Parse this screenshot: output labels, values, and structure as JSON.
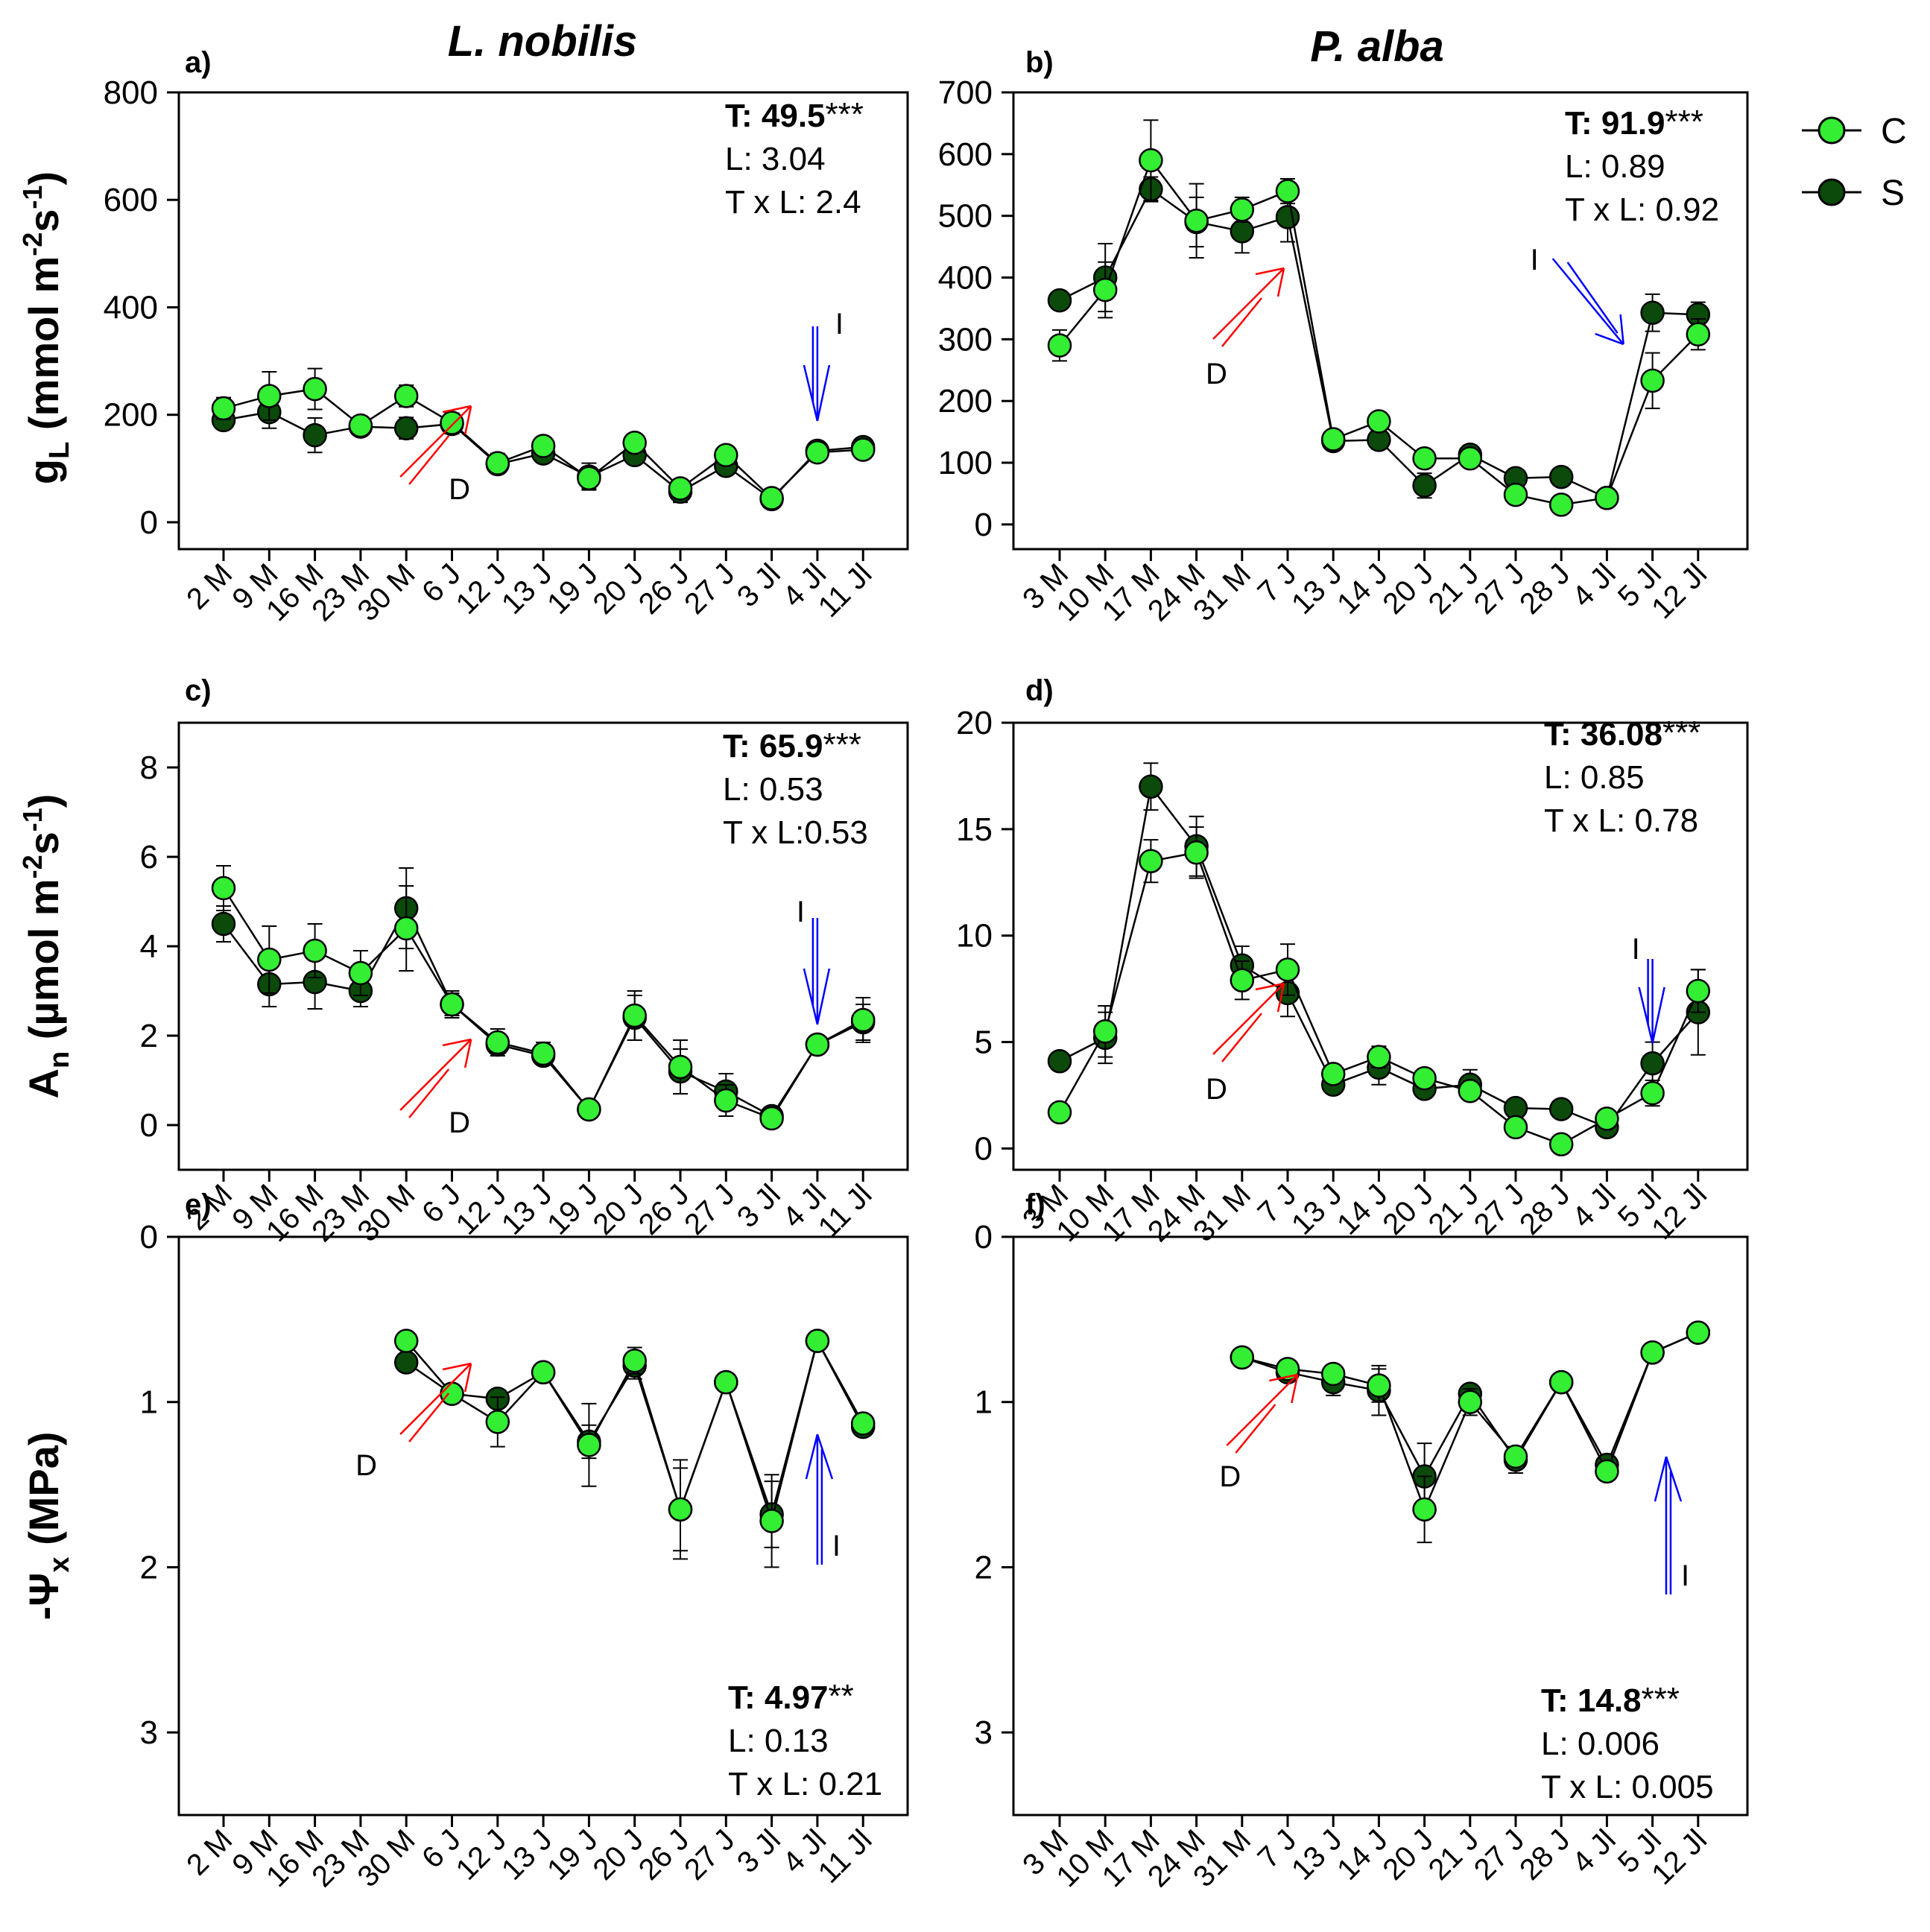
{
  "figure": {
    "title_left": "L. nobilis",
    "title_right": "P. alba",
    "ylabels": {
      "gl": {
        "main": "g",
        "sub": "L",
        "rest": " (mmol m",
        "sup1": "-2",
        "mid": "s",
        "sup2": "-1",
        "end": ")"
      },
      "an": {
        "main": "A",
        "sub": "n",
        "rest": " (µmol m",
        "sup1": "-2",
        "mid": "s",
        "sup2": "-1",
        "end": ")"
      },
      "psi": {
        "main": "-Ψ",
        "sub": "x",
        "rest": " (MPa)"
      }
    },
    "legend": [
      {
        "label": "C",
        "color": "#33ee33"
      },
      {
        "label": "S",
        "color": "#0b4a0b"
      }
    ],
    "colors": {
      "C": "#33ee33",
      "S": "#0b4a0b",
      "drought_arrow": "#ff0000",
      "irrigation_arrow": "#0000ff"
    }
  },
  "chart_data": [
    {
      "type": "line",
      "panel": "a)",
      "species": "L. nobilis",
      "variable": "gL",
      "categories": [
        "2 M",
        "9 M",
        "16 M",
        "23 M",
        "30 M",
        "6 J",
        "12 J",
        "13 J",
        "19 J",
        "20 J",
        "26 J",
        "27 J",
        "3 Jl",
        "4 Jl",
        "11 Jl"
      ],
      "ylim": [
        -50,
        800
      ],
      "yticks": [
        0,
        200,
        400,
        600,
        800
      ],
      "inverted": false,
      "series": [
        {
          "name": "C",
          "values": [
            212,
            235,
            248,
            180,
            235,
            185,
            110,
            142,
            82,
            148,
            63,
            125,
            45,
            130,
            135
          ],
          "errors": [
            20,
            45,
            38,
            15,
            20,
            18,
            18,
            15,
            20,
            15,
            10,
            12,
            10,
            15,
            15
          ]
        },
        {
          "name": "S",
          "values": [
            190,
            205,
            162,
            178,
            175,
            183,
            108,
            128,
            85,
            125,
            57,
            105,
            43,
            133,
            140
          ],
          "errors": [
            15,
            30,
            32,
            12,
            20,
            18,
            15,
            12,
            25,
            15,
            20,
            15,
            10,
            12,
            12
          ]
        }
      ],
      "stats": {
        "T": "T: 49.5",
        "T_sig": "***",
        "L": "L: 3.04",
        "TxL": "T x L: 2.4"
      },
      "annotations": [
        {
          "text": "D",
          "kind": "drought",
          "at": 5.5
        },
        {
          "text": "I",
          "kind": "irrigation",
          "at": 13
        }
      ]
    },
    {
      "type": "line",
      "panel": "b)",
      "species": "P. alba",
      "variable": "gL",
      "categories": [
        "3 M",
        "10 M",
        "17 M",
        "24 M",
        "31 M",
        "7 J",
        "13 J",
        "14 J",
        "20 J",
        "21 J",
        "27 J",
        "28 J",
        "4 Jl",
        "5 Jl",
        "12 Jl"
      ],
      "ylim": [
        -40,
        700
      ],
      "yticks": [
        0,
        100,
        200,
        300,
        400,
        500,
        600,
        700
      ],
      "inverted": false,
      "series": [
        {
          "name": "C",
          "values": [
            290,
            380,
            590,
            492,
            510,
            540,
            138,
            167,
            107,
            107,
            48,
            32,
            43,
            233,
            308
          ],
          "errors": [
            25,
            45,
            65,
            60,
            20,
            20,
            10,
            12,
            10,
            10,
            12,
            8,
            8,
            45,
            25
          ]
        },
        {
          "name": "S",
          "values": [
            363,
            400,
            543,
            490,
            475,
            498,
            135,
            137,
            63,
            113,
            75,
            77,
            43,
            343,
            340
          ],
          "errors": [
            10,
            55,
            20,
            40,
            35,
            40,
            10,
            15,
            20,
            15,
            10,
            10,
            8,
            30,
            20
          ]
        }
      ],
      "stats": {
        "T": "T: 91.9",
        "T_sig": "***",
        "L": "L: 0.89",
        "TxL": "T x L: 0.92"
      },
      "annotations": [
        {
          "text": "D",
          "kind": "drought",
          "at": 5
        },
        {
          "text": "I",
          "kind": "irrigation",
          "at": 12.2
        }
      ]
    },
    {
      "type": "line",
      "panel": "c)",
      "species": "L. nobilis",
      "variable": "An",
      "categories": [
        "2 M",
        "9 M",
        "16 M",
        "23 M",
        "30 M",
        "6 J",
        "12 J",
        "13 J",
        "19 J",
        "20 J",
        "26 J",
        "27 J",
        "3 Jl",
        "4 Jl",
        "11 Jl"
      ],
      "ylim": [
        -1,
        9
      ],
      "yticks": [
        0,
        2,
        4,
        6,
        8
      ],
      "inverted": false,
      "series": [
        {
          "name": "C",
          "values": [
            5.3,
            3.7,
            3.9,
            3.4,
            4.4,
            2.7,
            1.85,
            1.6,
            0.35,
            2.45,
            1.3,
            0.55,
            0.15,
            1.8,
            2.35
          ],
          "errors": [
            0.5,
            0.75,
            0.6,
            0.5,
            0.95,
            0.3,
            0.3,
            0.25,
            0.1,
            0.55,
            0.6,
            0.35,
            0.1,
            0.2,
            0.5
          ]
        },
        {
          "name": "S",
          "values": [
            4.5,
            3.15,
            3.2,
            3.0,
            4.85,
            2.7,
            1.8,
            1.55,
            0.35,
            2.4,
            1.2,
            0.75,
            0.2,
            1.8,
            2.3
          ],
          "errors": [
            0.4,
            0.5,
            0.6,
            0.35,
            0.9,
            0.25,
            0.2,
            0.2,
            0.1,
            0.5,
            0.5,
            0.4,
            0.1,
            0.2,
            0.4
          ]
        }
      ],
      "stats": {
        "T": "T: 65.9",
        "T_sig": "***",
        "L": "L: 0.53",
        "TxL": "T x L:0.53"
      },
      "annotations": [
        {
          "text": "D",
          "kind": "drought",
          "at": 5.5
        },
        {
          "text": "I",
          "kind": "irrigation",
          "at": 13
        }
      ]
    },
    {
      "type": "line",
      "panel": "d)",
      "species": "P. alba",
      "variable": "An",
      "categories": [
        "3 M",
        "10 M",
        "17 M",
        "24 M",
        "31 M",
        "7 J",
        "13 J",
        "14 J",
        "20 J",
        "21 J",
        "27 J",
        "28 J",
        "4 Jl",
        "5 Jl",
        "12 Jl"
      ],
      "ylim": [
        -1,
        20
      ],
      "yticks": [
        0,
        5,
        10,
        15,
        20
      ],
      "inverted": false,
      "series": [
        {
          "name": "C",
          "values": [
            1.7,
            5.5,
            13.5,
            13.9,
            7.9,
            8.4,
            3.5,
            4.3,
            3.3,
            2.7,
            1.0,
            0.2,
            1.4,
            2.6,
            7.4
          ],
          "errors": [
            0.2,
            1.2,
            1.0,
            1.2,
            0.9,
            1.2,
            0.3,
            0.5,
            0.3,
            0.4,
            0.3,
            0.2,
            0.2,
            0.6,
            1.0
          ]
        },
        {
          "name": "S",
          "values": [
            4.1,
            5.2,
            17.0,
            14.2,
            8.6,
            7.3,
            3.0,
            3.8,
            2.8,
            3.0,
            1.9,
            1.85,
            1.0,
            4.0,
            6.4
          ],
          "errors": [
            0.3,
            1.2,
            1.1,
            1.4,
            0.9,
            1.1,
            0.3,
            0.8,
            0.4,
            0.7,
            0.3,
            0.2,
            0.3,
            1.0,
            2.0
          ]
        }
      ],
      "stats": {
        "T": "T: 36.08",
        "T_sig": "***",
        "L": "L: 0.85",
        "TxL": "T x L: 0.78"
      },
      "annotations": [
        {
          "text": "D",
          "kind": "drought",
          "at": 5
        },
        {
          "text": "I",
          "kind": "irrigation",
          "at": 13
        }
      ]
    },
    {
      "type": "line",
      "panel": "e)",
      "species": "L. nobilis",
      "variable": "-Psi_x",
      "categories": [
        "2 M",
        "9 M",
        "16 M",
        "23 M",
        "30 M",
        "6 J",
        "12 J",
        "13 J",
        "19 J",
        "20 J",
        "26 J",
        "27 J",
        "3 Jl",
        "4 Jl",
        "11 Jl"
      ],
      "ylim": [
        0,
        3.5
      ],
      "yticks": [
        0,
        1,
        2,
        3
      ],
      "inverted": true,
      "series": [
        {
          "name": "C",
          "values": [
            null,
            null,
            null,
            null,
            0.63,
            0.95,
            1.12,
            0.82,
            1.26,
            0.75,
            1.65,
            0.88,
            1.72,
            0.63,
            1.13
          ],
          "errors": [
            null,
            null,
            null,
            null,
            0.05,
            0.05,
            0.15,
            0.05,
            0.25,
            0.08,
            0.3,
            0.05,
            0.28,
            0.05,
            0.05
          ]
        },
        {
          "name": "S",
          "values": [
            null,
            null,
            null,
            null,
            0.76,
            0.95,
            0.98,
            0.82,
            1.24,
            0.78,
            1.65,
            0.88,
            1.68,
            0.63,
            1.15
          ],
          "errors": [
            null,
            null,
            null,
            null,
            0.05,
            0.05,
            0.05,
            0.05,
            0.1,
            0.08,
            0.25,
            0.05,
            0.2,
            0.05,
            0.05
          ]
        }
      ],
      "stats": {
        "T": "T: 4.97",
        "T_sig": "**",
        "L": "L: 0.13",
        "TxL": "T x L: 0.21"
      },
      "annotations": [
        {
          "text": "D",
          "kind": "drought",
          "at": 5.5
        },
        {
          "text": "I",
          "kind": "irrigation",
          "at": 13
        }
      ]
    },
    {
      "type": "line",
      "panel": "f)",
      "species": "P. alba",
      "variable": "-Psi_x",
      "categories": [
        "3 M",
        "10 M",
        "17 M",
        "24 M",
        "31 M",
        "7 J",
        "13 J",
        "14 J",
        "20 J",
        "21 J",
        "27 J",
        "28 J",
        "4 Jl",
        "5 Jl",
        "12 Jl"
      ],
      "ylim": [
        0,
        3.5
      ],
      "yticks": [
        0,
        1,
        2,
        3
      ],
      "inverted": true,
      "series": [
        {
          "name": "C",
          "values": [
            null,
            null,
            null,
            null,
            0.73,
            0.8,
            0.83,
            0.9,
            1.65,
            1.0,
            1.33,
            0.88,
            1.42,
            0.7,
            0.58
          ],
          "errors": [
            null,
            null,
            null,
            null,
            0.03,
            0.05,
            0.05,
            0.1,
            0.2,
            0.08,
            0.05,
            0.05,
            0.05,
            0.05,
            0.03
          ]
        },
        {
          "name": "S",
          "values": [
            null,
            null,
            null,
            null,
            0.73,
            0.82,
            0.88,
            0.93,
            1.45,
            0.95,
            1.35,
            0.88,
            1.38,
            0.7,
            0.58
          ],
          "errors": [
            null,
            null,
            null,
            null,
            0.03,
            0.05,
            0.08,
            0.15,
            0.2,
            0.05,
            0.08,
            0.05,
            0.05,
            0.03,
            0.03
          ]
        }
      ],
      "stats": {
        "T": "T: 14.8",
        "T_sig": "***",
        "L": "L: 0.006",
        "TxL": "T x L: 0.005"
      },
      "annotations": [
        {
          "text": "D",
          "kind": "drought",
          "at": 5.3
        },
        {
          "text": "I",
          "kind": "irrigation",
          "at": 13.3
        }
      ]
    }
  ]
}
